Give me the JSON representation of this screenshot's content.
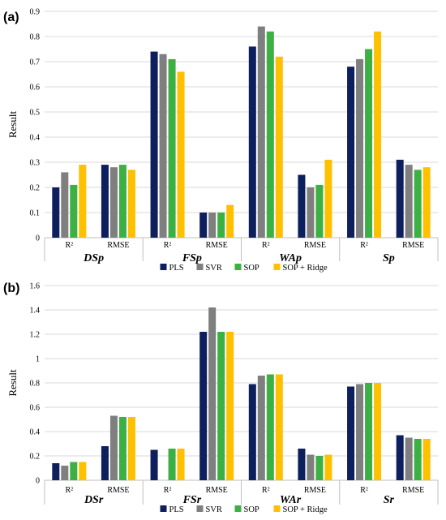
{
  "chart_data": [
    {
      "type": "bar",
      "panel_label": "(a)",
      "ylabel": "Result",
      "ylim": [
        0,
        0.9
      ],
      "yticks": [
        "0",
        "0.1",
        "0.2",
        "0.3",
        "0.4",
        "0.5",
        "0.6",
        "0.7",
        "0.8",
        "0.9"
      ],
      "grid": true,
      "groups": [
        "DSp",
        "FSp",
        "WAp",
        "Sp"
      ],
      "categories": [
        "R²",
        "RMSE",
        "R²",
        "RMSE",
        "R²",
        "RMSE",
        "R²",
        "RMSE"
      ],
      "series": [
        {
          "name": "PLS",
          "color": "#0d1f5c",
          "values": [
            0.2,
            0.29,
            0.74,
            0.1,
            0.76,
            0.25,
            0.68,
            0.31
          ]
        },
        {
          "name": "SVR",
          "color": "#7f7f7f",
          "values": [
            0.26,
            0.28,
            0.73,
            0.1,
            0.84,
            0.2,
            0.71,
            0.29
          ]
        },
        {
          "name": "SOP",
          "color": "#3cb043",
          "values": [
            0.21,
            0.29,
            0.71,
            0.1,
            0.82,
            0.21,
            0.75,
            0.27
          ]
        },
        {
          "name": "SOP + Ridge",
          "color": "#ffc000",
          "values": [
            0.29,
            0.27,
            0.66,
            0.13,
            0.72,
            0.31,
            0.82,
            0.28
          ]
        }
      ],
      "legend_position": "bottom"
    },
    {
      "type": "bar",
      "panel_label": "(b)",
      "ylabel": "Result",
      "ylim": [
        0,
        1.6
      ],
      "yticks": [
        "0",
        "0.2",
        "0.4",
        "0.6",
        "0.8",
        "1",
        "1.2",
        "1.4",
        "1.6"
      ],
      "grid": true,
      "groups": [
        "DSr",
        "FSr",
        "WAr",
        "Sr"
      ],
      "categories": [
        "R²",
        "RMSE",
        "R²",
        "RMSE",
        "R²",
        "RMSE",
        "R²",
        "RMSE"
      ],
      "series": [
        {
          "name": "PLS",
          "color": "#0d1f5c",
          "values": [
            0.14,
            0.28,
            0.25,
            1.22,
            0.79,
            0.26,
            0.77,
            0.37
          ]
        },
        {
          "name": "SVR",
          "color": "#7f7f7f",
          "values": [
            0.12,
            0.53,
            0.0,
            1.42,
            0.86,
            0.21,
            0.79,
            0.35
          ]
        },
        {
          "name": "SOP",
          "color": "#3cb043",
          "values": [
            0.15,
            0.52,
            0.26,
            1.22,
            0.87,
            0.2,
            0.8,
            0.34
          ]
        },
        {
          "name": "SOP + Ridge",
          "color": "#ffc000",
          "values": [
            0.15,
            0.52,
            0.26,
            1.22,
            0.87,
            0.21,
            0.8,
            0.34
          ]
        }
      ],
      "legend_position": "bottom"
    }
  ]
}
